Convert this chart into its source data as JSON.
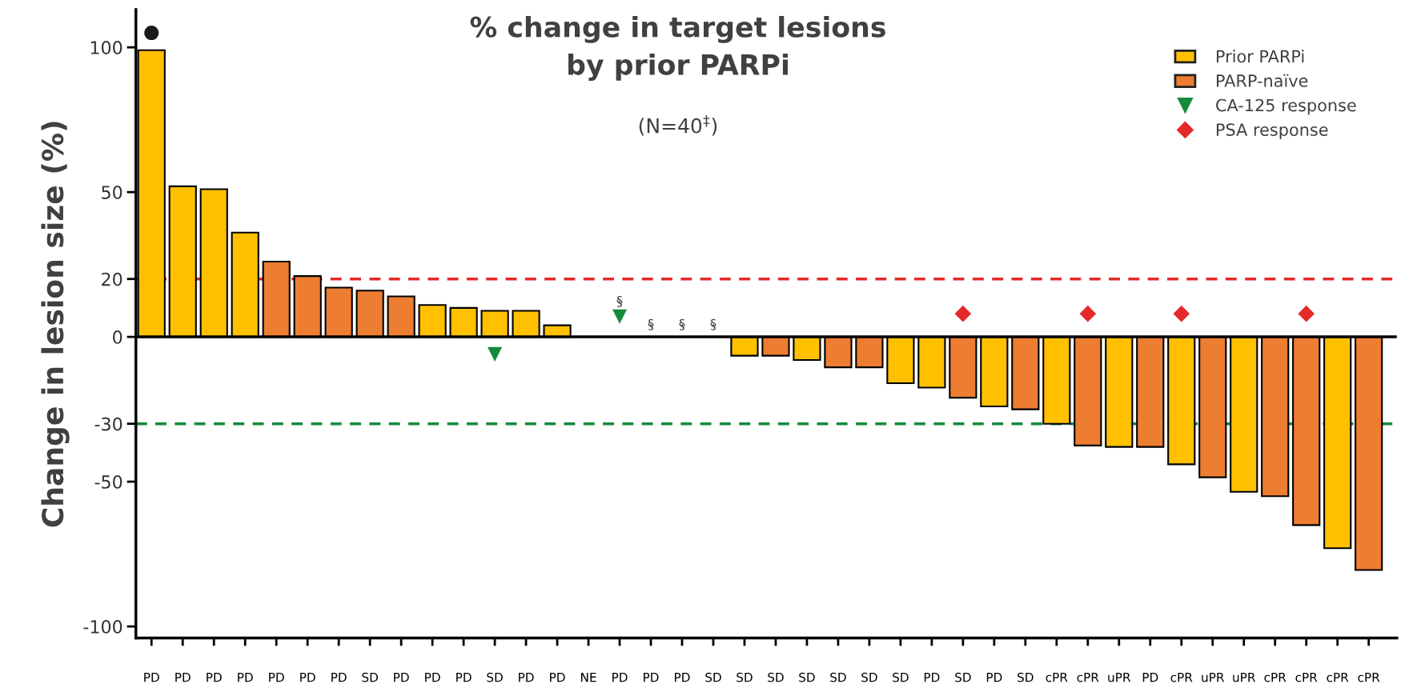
{
  "chart_data": {
    "type": "bar",
    "title": "% change in target lesions\nby prior PARPi",
    "subtitle": "(N=40$^{‡}$)",
    "ylabel": "Change in lesion size (%)",
    "categories": [
      "PD",
      "PD",
      "PD",
      "PD",
      "PD",
      "PD",
      "PD",
      "SD",
      "PD",
      "PD",
      "PD",
      "SD",
      "PD",
      "PD",
      "NE",
      "PD",
      "PD",
      "PD",
      "SD",
      "SD",
      "SD",
      "SD",
      "SD",
      "SD",
      "SD",
      "PD",
      "SD",
      "PD",
      "SD",
      "cPR",
      "cPR",
      "uPR",
      "PD",
      "cPR",
      "uPR",
      "uPR",
      "cPR",
      "cPR",
      "cPR",
      "cPR"
    ],
    "series": [
      {
        "name": "Prior PARPi",
        "color": "#ffc000",
        "values": [
          99,
          52,
          51,
          36,
          null,
          null,
          null,
          null,
          null,
          11,
          10,
          9,
          9,
          4,
          null,
          null,
          null,
          null,
          null,
          -6.5,
          null,
          -8,
          null,
          null,
          -16,
          -17.5,
          null,
          -24,
          null,
          -30,
          null,
          -38,
          null,
          -44,
          null,
          -53.5,
          null,
          null,
          -73,
          null
        ]
      },
      {
        "name": "PARP-naïve",
        "color": "#ed7d31",
        "values": [
          null,
          null,
          null,
          null,
          26,
          21,
          17,
          16,
          14,
          null,
          null,
          null,
          null,
          null,
          null,
          null,
          null,
          null,
          null,
          null,
          -6.5,
          null,
          -10.5,
          -10.5,
          null,
          null,
          -21,
          null,
          -25,
          null,
          -37.5,
          null,
          -38,
          null,
          -48.5,
          null,
          -55,
          -65,
          null,
          -80.5
        ]
      },
      {
        "name": "CA-125 response",
        "type": "scatter",
        "marker": "triangle",
        "color": "#158a3c",
        "values": [
          null,
          null,
          null,
          null,
          null,
          null,
          null,
          null,
          null,
          null,
          null,
          -6,
          null,
          null,
          null,
          7,
          null,
          null,
          null,
          null,
          null,
          null,
          null,
          null,
          null,
          null,
          null,
          null,
          null,
          null,
          null,
          null,
          null,
          null,
          null,
          null,
          null,
          null,
          null,
          null
        ]
      },
      {
        "name": "PSA response",
        "type": "scatter",
        "marker": "diamond",
        "color": "#e42a28",
        "values": [
          null,
          null,
          null,
          null,
          null,
          null,
          null,
          null,
          null,
          null,
          null,
          null,
          null,
          null,
          null,
          null,
          null,
          null,
          null,
          null,
          null,
          null,
          null,
          null,
          null,
          null,
          8,
          null,
          null,
          null,
          8,
          null,
          null,
          8,
          null,
          null,
          null,
          8,
          null,
          null
        ]
      },
      {
        "type": "scatter",
        "marker": "circle",
        "color": "#1a1a1a",
        "values": [
          105,
          null,
          null,
          null,
          null,
          null,
          null,
          null,
          null,
          null,
          null,
          null,
          null,
          null,
          null,
          null,
          null,
          null,
          null,
          null,
          null,
          null,
          null,
          null,
          null,
          null,
          null,
          null,
          null,
          null,
          null,
          null,
          null,
          null,
          null,
          null,
          null,
          null,
          null,
          null
        ]
      },
      {
        "type": "scatter",
        "marker": "none",
        "color": "#404040",
        "values": [
          null,
          null,
          null,
          null,
          null,
          null,
          null,
          null,
          null,
          null,
          null,
          null,
          null,
          null,
          null,
          12,
          4,
          4,
          4,
          null,
          null,
          null,
          null,
          null,
          null,
          null,
          null,
          null,
          null,
          null,
          null,
          null,
          null,
          null,
          null,
          null,
          null,
          null,
          null,
          null
        ],
        "value_labels": [
          null,
          null,
          null,
          null,
          null,
          null,
          null,
          null,
          null,
          null,
          null,
          null,
          null,
          null,
          null,
          "§",
          "§",
          "§",
          "§",
          null,
          null,
          null,
          null,
          null,
          null,
          null,
          null,
          null,
          null,
          null,
          null,
          null,
          null,
          null,
          null,
          null,
          null,
          null,
          null,
          null
        ]
      }
    ],
    "ylim": [
      -104,
      113
    ],
    "yticks": [
      -100,
      -50,
      -30,
      0,
      20,
      50,
      100
    ],
    "ref_lines": [
      {
        "axis": "y",
        "value": 20,
        "color": "#e42a28",
        "line_style": "dashed"
      },
      {
        "axis": "y",
        "value": -30,
        "color": "#158a3c",
        "line_style": "dashed"
      },
      {
        "axis": "y",
        "value": 0,
        "color": "#000000",
        "line_style": "solid"
      }
    ],
    "grid": false,
    "legend": "top right"
  }
}
